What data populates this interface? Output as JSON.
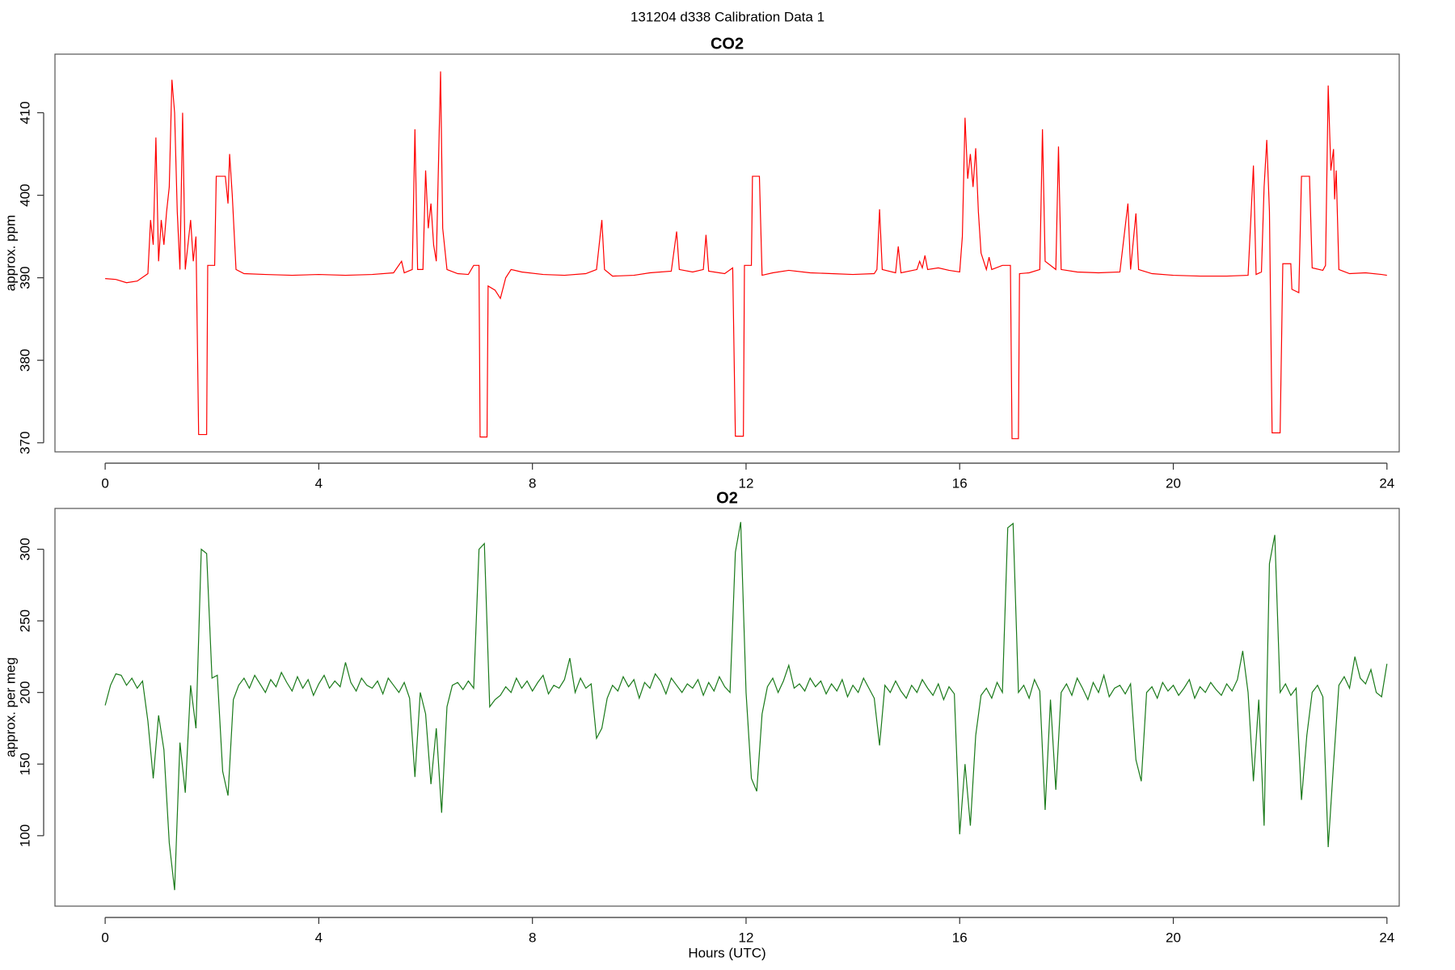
{
  "title": "131204   d338   Calibration Data 1",
  "chart_data": [
    {
      "type": "line",
      "title": "CO2",
      "ylabel": "approx. ppm",
      "xlim": [
        -0.94,
        24.23
      ],
      "ylim": [
        368.9,
        417.1
      ],
      "xticks": [
        0,
        4,
        8,
        12,
        16,
        20,
        24
      ],
      "yticks": [
        370,
        380,
        390,
        400,
        410
      ],
      "x": [
        0,
        0.2,
        0.4,
        0.6,
        0.8,
        0.85,
        0.9,
        0.95,
        1.0,
        1.05,
        1.1,
        1.15,
        1.2,
        1.25,
        1.3,
        1.35,
        1.4,
        1.45,
        1.5,
        1.6,
        1.65,
        1.7,
        1.75,
        1.9,
        1.92,
        2.05,
        2.08,
        2.25,
        2.3,
        2.33,
        2.38,
        2.45,
        2.6,
        3.0,
        3.5,
        4.0,
        4.5,
        5.0,
        5.4,
        5.55,
        5.6,
        5.75,
        5.8,
        5.85,
        5.95,
        6.0,
        6.05,
        6.1,
        6.15,
        6.2,
        6.28,
        6.32,
        6.4,
        6.6,
        6.8,
        6.9,
        7.0,
        7.02,
        7.15,
        7.17,
        7.3,
        7.4,
        7.5,
        7.6,
        7.8,
        8.2,
        8.6,
        9.0,
        9.2,
        9.25,
        9.3,
        9.35,
        9.5,
        9.9,
        10.2,
        10.6,
        10.7,
        10.75,
        11.0,
        11.2,
        11.25,
        11.3,
        11.6,
        11.75,
        11.8,
        11.95,
        11.97,
        12.1,
        12.12,
        12.25,
        12.3,
        12.5,
        12.8,
        13.2,
        13.6,
        14.0,
        14.4,
        14.45,
        14.5,
        14.55,
        14.8,
        14.85,
        14.9,
        15.2,
        15.25,
        15.3,
        15.35,
        15.4,
        15.6,
        15.8,
        16.0,
        16.05,
        16.1,
        16.15,
        16.2,
        16.25,
        16.3,
        16.35,
        16.4,
        16.5,
        16.55,
        16.6,
        16.8,
        16.95,
        16.98,
        17.1,
        17.12,
        17.3,
        17.5,
        17.55,
        17.6,
        17.8,
        17.85,
        17.9,
        18.2,
        18.6,
        19.0,
        19.15,
        19.2,
        19.3,
        19.35,
        19.6,
        20.0,
        20.5,
        21.0,
        21.4,
        21.5,
        21.55,
        21.65,
        21.7,
        21.75,
        21.8,
        21.85,
        22.0,
        22.05,
        22.2,
        22.22,
        22.35,
        22.4,
        22.55,
        22.6,
        22.8,
        22.85,
        22.9,
        22.95,
        23.0,
        23.02,
        23.05,
        23.1,
        23.3,
        23.6,
        23.9,
        24.0
      ],
      "series": [
        {
          "color": "#ff0000",
          "values": [
            389.9,
            389.8,
            389.4,
            389.6,
            390.5,
            397,
            394,
            407,
            392,
            397,
            394,
            398,
            401,
            414,
            410,
            398,
            391,
            410,
            391,
            397,
            392,
            395,
            371,
            371,
            391.5,
            391.5,
            402.3,
            402.3,
            399,
            405,
            400,
            391,
            390.5,
            390.4,
            390.3,
            390.4,
            390.3,
            390.4,
            390.6,
            392,
            390.6,
            391,
            408,
            391,
            391,
            403,
            396,
            399,
            394,
            392,
            415,
            396,
            391,
            390.5,
            390.4,
            391.5,
            391.5,
            370.7,
            370.7,
            389,
            388.5,
            387.5,
            390,
            391,
            390.7,
            390.4,
            390.3,
            390.5,
            391,
            394,
            397,
            391,
            390.2,
            390.3,
            390.6,
            390.8,
            395.6,
            391,
            390.7,
            391,
            395.2,
            390.8,
            390.5,
            391.2,
            370.8,
            370.8,
            391.5,
            391.5,
            402.3,
            402.3,
            390.3,
            390.6,
            390.9,
            390.6,
            390.5,
            390.4,
            390.5,
            391,
            398.3,
            391,
            390.6,
            393.8,
            390.6,
            391,
            392,
            391.2,
            392.7,
            391,
            391.2,
            390.9,
            390.7,
            395,
            409.4,
            402,
            405,
            401,
            405.7,
            398,
            393,
            391,
            392.5,
            391,
            391.5,
            391.5,
            370.5,
            370.5,
            390.5,
            390.6,
            391,
            408,
            392,
            391,
            405.9,
            391,
            390.7,
            390.6,
            390.7,
            399,
            391,
            397.8,
            391,
            390.5,
            390.3,
            390.2,
            390.2,
            390.3,
            403.6,
            390.4,
            390.7,
            401,
            406.7,
            398,
            371.2,
            371.2,
            391.7,
            391.7,
            388.6,
            388.2,
            402.3,
            402.3,
            391.2,
            390.9,
            391.5,
            413.3,
            403,
            405.6,
            399.5,
            403,
            391,
            390.5,
            390.6,
            390.4,
            390.3
          ]
        }
      ]
    },
    {
      "type": "line",
      "title": "O2",
      "ylabel": "approx. per meg",
      "xlabel": "Hours (UTC)",
      "xlim": [
        -0.94,
        24.23
      ],
      "ylim": [
        50.8,
        328.5
      ],
      "xticks": [
        0,
        4,
        8,
        12,
        16,
        20,
        24
      ],
      "yticks": [
        100,
        150,
        200,
        250,
        300
      ],
      "x": [
        0,
        0.1,
        0.2,
        0.3,
        0.4,
        0.5,
        0.6,
        0.7,
        0.8,
        0.9,
        1,
        1.1,
        1.2,
        1.3,
        1.4,
        1.5,
        1.6,
        1.7,
        1.8,
        1.9,
        2,
        2.1,
        2.2,
        2.3,
        2.4,
        2.5,
        2.6,
        2.7,
        2.8,
        2.9,
        3,
        3.1,
        3.2,
        3.3,
        3.4,
        3.5,
        3.6,
        3.7,
        3.8,
        3.9,
        4,
        4.1,
        4.2,
        4.3,
        4.4,
        4.5,
        4.6,
        4.7,
        4.8,
        4.9,
        5,
        5.1,
        5.2,
        5.3,
        5.4,
        5.5,
        5.6,
        5.7,
        5.8,
        5.9,
        6,
        6.1,
        6.2,
        6.3,
        6.4,
        6.5,
        6.6,
        6.7,
        6.8,
        6.9,
        7,
        7.1,
        7.2,
        7.3,
        7.4,
        7.5,
        7.6,
        7.7,
        7.8,
        7.9,
        8,
        8.1,
        8.2,
        8.3,
        8.4,
        8.5,
        8.6,
        8.7,
        8.8,
        8.9,
        9,
        9.1,
        9.2,
        9.3,
        9.4,
        9.5,
        9.6,
        9.7,
        9.8,
        9.9,
        10,
        10.1,
        10.2,
        10.3,
        10.4,
        10.5,
        10.6,
        10.7,
        10.8,
        10.9,
        11,
        11.1,
        11.2,
        11.3,
        11.4,
        11.5,
        11.6,
        11.7,
        11.8,
        11.9,
        12,
        12.1,
        12.2,
        12.3,
        12.4,
        12.5,
        12.6,
        12.7,
        12.8,
        12.9,
        13,
        13.1,
        13.2,
        13.3,
        13.4,
        13.5,
        13.6,
        13.7,
        13.8,
        13.9,
        14,
        14.1,
        14.2,
        14.3,
        14.4,
        14.5,
        14.6,
        14.7,
        14.8,
        14.9,
        15,
        15.1,
        15.2,
        15.3,
        15.4,
        15.5,
        15.6,
        15.7,
        15.8,
        15.9,
        16,
        16.1,
        16.2,
        16.3,
        16.4,
        16.5,
        16.6,
        16.7,
        16.8,
        16.9,
        17,
        17.1,
        17.2,
        17.3,
        17.4,
        17.5,
        17.6,
        17.7,
        17.8,
        17.9,
        18,
        18.1,
        18.2,
        18.3,
        18.4,
        18.5,
        18.6,
        18.7,
        18.8,
        18.9,
        19,
        19.1,
        19.2,
        19.3,
        19.4,
        19.5,
        19.6,
        19.7,
        19.8,
        19.9,
        20,
        20.1,
        20.2,
        20.3,
        20.4,
        20.5,
        20.6,
        20.7,
        20.8,
        20.9,
        21,
        21.1,
        21.2,
        21.3,
        21.4,
        21.5,
        21.6,
        21.7,
        21.8,
        21.9,
        22,
        22.1,
        22.2,
        22.3,
        22.4,
        22.5,
        22.6,
        22.7,
        22.8,
        22.9,
        23,
        23.1,
        23.2,
        23.3,
        23.4,
        23.5,
        23.6,
        23.7,
        23.8,
        23.9,
        24
      ],
      "series": [
        {
          "color": "#1a7a1a",
          "values": [
            191,
            205,
            213,
            212,
            205,
            210,
            203,
            208,
            180,
            140,
            184,
            160,
            95,
            62,
            165,
            130,
            205,
            175,
            300,
            297,
            210,
            212,
            145,
            128,
            195,
            205,
            210,
            203,
            212,
            206,
            200,
            209,
            204,
            214,
            207,
            201,
            211,
            203,
            209,
            198,
            206,
            212,
            203,
            208,
            204,
            221,
            207,
            201,
            210,
            205,
            203,
            208,
            199,
            210,
            205,
            200,
            207,
            196,
            141,
            200,
            185,
            136,
            175,
            116,
            190,
            205,
            207,
            202,
            208,
            203,
            300,
            304,
            190,
            195,
            198,
            204,
            200,
            210,
            203,
            208,
            201,
            207,
            212,
            199,
            205,
            203,
            209,
            224,
            200,
            210,
            203,
            206,
            168,
            175,
            196,
            205,
            201,
            211,
            204,
            209,
            196,
            207,
            203,
            213,
            208,
            199,
            210,
            205,
            200,
            206,
            203,
            209,
            198,
            207,
            201,
            211,
            204,
            200,
            298,
            319,
            200,
            140,
            131,
            185,
            204,
            210,
            200,
            208,
            219,
            203,
            206,
            201,
            210,
            204,
            208,
            199,
            206,
            201,
            209,
            197,
            205,
            200,
            210,
            203,
            196,
            163,
            205,
            200,
            208,
            201,
            196,
            205,
            200,
            209,
            203,
            198,
            206,
            195,
            204,
            199,
            101,
            150,
            107,
            170,
            198,
            203,
            196,
            207,
            200,
            315,
            318,
            200,
            205,
            196,
            209,
            201,
            118,
            195,
            132,
            200,
            206,
            198,
            210,
            203,
            195,
            207,
            200,
            212,
            197,
            203,
            205,
            199,
            206,
            153,
            138,
            200,
            204,
            196,
            207,
            201,
            205,
            198,
            203,
            209,
            196,
            204,
            200,
            207,
            202,
            198,
            206,
            201,
            209,
            229,
            200,
            138,
            195,
            107,
            290,
            310,
            200,
            206,
            198,
            203,
            125,
            170,
            200,
            205,
            197,
            92,
            150,
            205,
            211,
            203,
            225,
            210,
            206,
            216,
            200,
            197,
            220
          ]
        }
      ]
    }
  ]
}
